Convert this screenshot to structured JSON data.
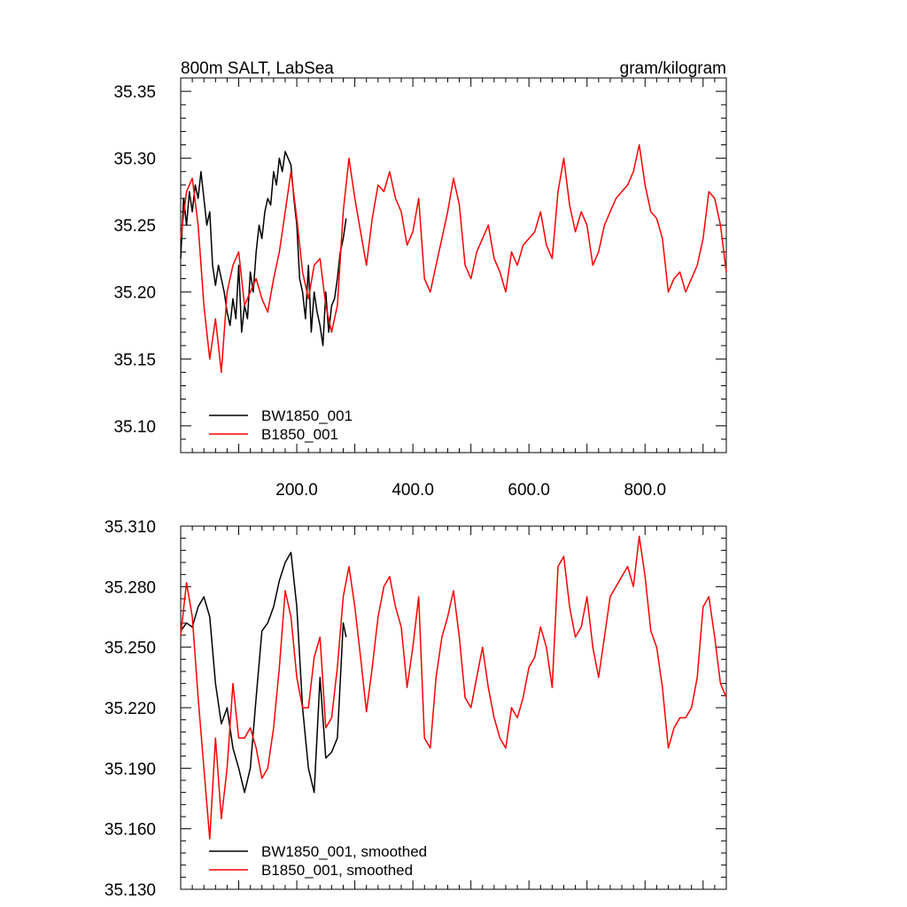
{
  "chart_data": [
    {
      "type": "line",
      "title_left": "800m SALT, LabSea",
      "title_right": "gram/kilogram",
      "xlim": [
        0,
        940
      ],
      "ylim": [
        35.08,
        35.36
      ],
      "x_ticks": [
        200,
        400,
        600,
        800
      ],
      "x_tick_labels": [
        "200.0",
        "400.0",
        "600.0",
        "800.0"
      ],
      "y_ticks": [
        35.1,
        35.15,
        35.2,
        35.25,
        35.3,
        35.35
      ],
      "y_tick_labels": [
        "35.10",
        "35.15",
        "35.20",
        "35.25",
        "35.30",
        "35.35"
      ],
      "grid": false,
      "legend_position": "bottom-left",
      "series": [
        {
          "name": "BW1850_001",
          "color": "#000000",
          "x": [
            0,
            5,
            10,
            15,
            20,
            25,
            30,
            35,
            40,
            45,
            50,
            55,
            60,
            65,
            70,
            75,
            80,
            85,
            90,
            95,
            100,
            105,
            110,
            115,
            120,
            125,
            130,
            135,
            140,
            145,
            150,
            155,
            160,
            165,
            170,
            175,
            180,
            185,
            190,
            195,
            200,
            205,
            210,
            215,
            220,
            225,
            230,
            235,
            240,
            245,
            250,
            255,
            260,
            265,
            270,
            275,
            280,
            285
          ],
          "values": [
            35.225,
            35.27,
            35.25,
            35.275,
            35.26,
            35.28,
            35.27,
            35.29,
            35.27,
            35.25,
            35.26,
            35.22,
            35.205,
            35.22,
            35.21,
            35.2,
            35.185,
            35.175,
            35.195,
            35.18,
            35.22,
            35.17,
            35.19,
            35.18,
            35.215,
            35.2,
            35.23,
            35.25,
            35.24,
            35.26,
            35.27,
            35.265,
            35.29,
            35.28,
            35.3,
            35.29,
            35.305,
            35.3,
            35.295,
            35.27,
            35.25,
            35.21,
            35.2,
            35.18,
            35.22,
            35.17,
            35.2,
            35.185,
            35.175,
            35.16,
            35.2,
            35.17,
            35.19,
            35.195,
            35.21,
            35.23,
            35.24,
            35.255
          ]
        },
        {
          "name": "B1850_001",
          "color": "#ff0000",
          "x": [
            0,
            10,
            20,
            30,
            40,
            50,
            60,
            70,
            80,
            90,
            100,
            110,
            120,
            130,
            140,
            150,
            160,
            170,
            180,
            190,
            200,
            210,
            220,
            230,
            240,
            250,
            260,
            270,
            280,
            290,
            300,
            310,
            320,
            330,
            340,
            350,
            360,
            370,
            380,
            390,
            400,
            410,
            420,
            430,
            440,
            450,
            460,
            470,
            480,
            490,
            500,
            510,
            520,
            530,
            540,
            550,
            560,
            570,
            580,
            590,
            600,
            610,
            620,
            630,
            640,
            650,
            660,
            670,
            680,
            690,
            700,
            710,
            720,
            730,
            740,
            750,
            760,
            770,
            780,
            790,
            800,
            810,
            820,
            830,
            840,
            850,
            860,
            870,
            880,
            890,
            900,
            910,
            920,
            930,
            940
          ],
          "values": [
            35.24,
            35.275,
            35.285,
            35.25,
            35.19,
            35.15,
            35.18,
            35.14,
            35.2,
            35.22,
            35.23,
            35.19,
            35.2,
            35.21,
            35.195,
            35.185,
            35.21,
            35.23,
            35.26,
            35.29,
            35.255,
            35.215,
            35.195,
            35.22,
            35.225,
            35.19,
            35.17,
            35.19,
            35.26,
            35.3,
            35.27,
            35.245,
            35.22,
            35.255,
            35.28,
            35.275,
            35.29,
            35.27,
            35.26,
            35.235,
            35.245,
            35.27,
            35.21,
            35.2,
            35.22,
            35.24,
            35.26,
            35.285,
            35.265,
            35.22,
            35.21,
            35.23,
            35.24,
            35.25,
            35.225,
            35.215,
            35.2,
            35.23,
            35.22,
            35.235,
            35.24,
            35.245,
            35.26,
            35.235,
            35.225,
            35.275,
            35.3,
            35.265,
            35.245,
            35.26,
            35.25,
            35.22,
            35.23,
            35.25,
            35.26,
            35.27,
            35.275,
            35.28,
            35.29,
            35.31,
            35.28,
            35.26,
            35.255,
            35.24,
            35.2,
            35.21,
            35.215,
            35.2,
            35.21,
            35.22,
            35.24,
            35.275,
            35.27,
            35.25,
            35.215
          ]
        }
      ]
    },
    {
      "type": "line",
      "xlim": [
        0,
        940
      ],
      "ylim": [
        35.13,
        35.31
      ],
      "y_ticks": [
        35.13,
        35.16,
        35.19,
        35.22,
        35.25,
        35.28,
        35.31
      ],
      "y_tick_labels": [
        "35.130",
        "35.160",
        "35.190",
        "35.220",
        "35.250",
        "35.280",
        "35.310"
      ],
      "grid": false,
      "legend_position": "bottom-left",
      "series": [
        {
          "name": "BW1850_001, smoothed",
          "color": "#000000",
          "x": [
            0,
            10,
            20,
            30,
            40,
            50,
            60,
            70,
            80,
            90,
            100,
            110,
            120,
            130,
            140,
            150,
            160,
            170,
            180,
            190,
            200,
            210,
            220,
            230,
            240,
            250,
            260,
            270,
            280,
            285
          ],
          "values": [
            35.258,
            35.262,
            35.26,
            35.27,
            35.275,
            35.265,
            35.232,
            35.212,
            35.22,
            35.2,
            35.19,
            35.178,
            35.19,
            35.225,
            35.258,
            35.262,
            35.27,
            35.283,
            35.292,
            35.297,
            35.27,
            35.22,
            35.19,
            35.178,
            35.235,
            35.195,
            35.198,
            35.205,
            35.262,
            35.255
          ]
        },
        {
          "name": "B1850_001, smoothed",
          "color": "#ff0000",
          "x": [
            0,
            10,
            20,
            30,
            40,
            50,
            60,
            70,
            80,
            90,
            100,
            110,
            120,
            130,
            140,
            150,
            160,
            170,
            180,
            190,
            200,
            210,
            220,
            230,
            240,
            250,
            260,
            270,
            280,
            290,
            300,
            310,
            320,
            330,
            340,
            350,
            360,
            370,
            380,
            390,
            400,
            410,
            420,
            430,
            440,
            450,
            460,
            470,
            480,
            490,
            500,
            510,
            520,
            530,
            540,
            550,
            560,
            570,
            580,
            590,
            600,
            610,
            620,
            630,
            640,
            650,
            660,
            670,
            680,
            690,
            700,
            710,
            720,
            730,
            740,
            750,
            760,
            770,
            780,
            790,
            800,
            810,
            820,
            830,
            840,
            850,
            860,
            870,
            880,
            890,
            900,
            910,
            920,
            930,
            940
          ],
          "values": [
            35.256,
            35.282,
            35.265,
            35.225,
            35.19,
            35.155,
            35.205,
            35.165,
            35.19,
            35.232,
            35.205,
            35.205,
            35.21,
            35.2,
            35.185,
            35.19,
            35.21,
            35.24,
            35.278,
            35.265,
            35.235,
            35.22,
            35.22,
            35.245,
            35.255,
            35.21,
            35.215,
            35.24,
            35.275,
            35.29,
            35.27,
            35.245,
            35.218,
            35.24,
            35.265,
            35.28,
            35.285,
            35.27,
            35.26,
            35.23,
            35.25,
            35.275,
            35.205,
            35.2,
            35.235,
            35.255,
            35.265,
            35.278,
            35.255,
            35.225,
            35.22,
            35.235,
            35.25,
            35.23,
            35.215,
            35.205,
            35.2,
            35.22,
            35.215,
            35.225,
            35.24,
            35.245,
            35.26,
            35.25,
            35.23,
            35.29,
            35.295,
            35.27,
            35.255,
            35.26,
            35.275,
            35.25,
            35.235,
            35.255,
            35.275,
            35.28,
            35.285,
            35.29,
            35.28,
            35.305,
            35.285,
            35.258,
            35.25,
            35.23,
            35.2,
            35.21,
            35.215,
            35.215,
            35.22,
            35.235,
            35.27,
            35.275,
            35.255,
            35.232,
            35.225
          ]
        }
      ]
    }
  ]
}
